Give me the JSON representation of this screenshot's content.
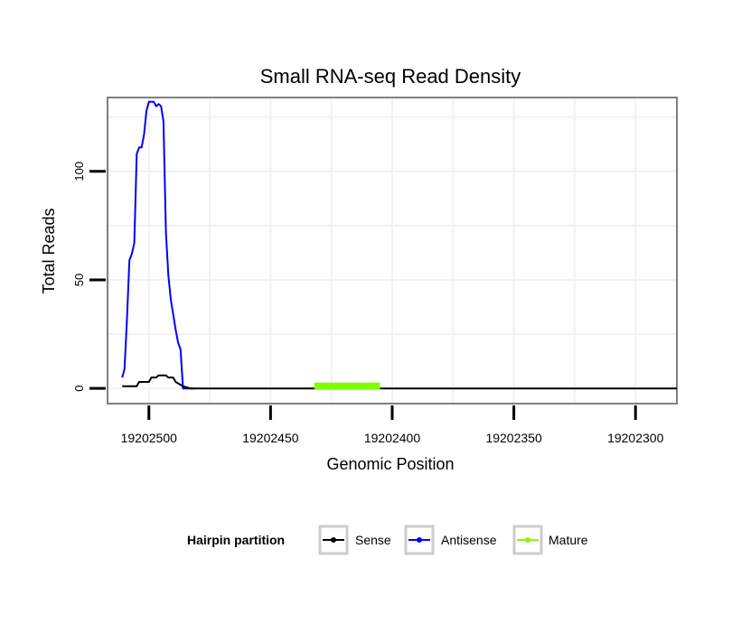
{
  "chart_data": {
    "type": "line",
    "title": "Small RNA-seq Read Density",
    "xlabel": "Genomic Position",
    "ylabel": "Total Reads",
    "x_reversed": true,
    "xlim": [
      19202517,
      19202283
    ],
    "ylim": [
      -7,
      134
    ],
    "x_ticks": [
      19202500,
      19202450,
      19202400,
      19202350,
      19202300
    ],
    "x_tick_labels": [
      "19202500",
      "19202450",
      "19202400",
      "19202350",
      "19202300"
    ],
    "y_ticks": [
      0,
      50,
      100
    ],
    "y_tick_labels": [
      "0",
      "50",
      "100"
    ],
    "grid": true,
    "legend": {
      "title": "Hairpin partition",
      "placement": "bottom",
      "entries": [
        {
          "label": "Sense",
          "color": "#000000"
        },
        {
          "label": "Antisense",
          "color": "#0000ff"
        },
        {
          "label": "Mature",
          "color": "#7fff00"
        }
      ]
    },
    "series": [
      {
        "name": "Antisense",
        "color": "#0000ff",
        "x": [
          19202511,
          19202510,
          19202509,
          19202508,
          19202507,
          19202506,
          19202505,
          19202504,
          19202503,
          19202502,
          19202501,
          19202500,
          19202499,
          19202498,
          19202497,
          19202496,
          19202495,
          19202494,
          19202493,
          19202492,
          19202491,
          19202490,
          19202489,
          19202488,
          19202487,
          19202486,
          19202485,
          19202484,
          19202483,
          19202482,
          19202481
        ],
        "y": [
          5,
          9,
          32,
          59,
          62,
          67,
          108,
          111,
          111,
          117,
          128,
          132,
          132,
          132,
          130,
          131,
          130,
          123,
          72,
          52,
          41,
          34,
          27,
          21,
          18,
          0,
          0,
          0,
          0,
          0,
          0
        ]
      },
      {
        "name": "Sense",
        "color": "#000000",
        "x": [
          19202511,
          19202510,
          19202505,
          19202504,
          19202500,
          19202499,
          19202497,
          19202496,
          19202493,
          19202492,
          19202490,
          19202489,
          19202486,
          19202483,
          19202283
        ],
        "y": [
          1,
          1,
          1,
          3,
          3,
          5,
          5,
          6,
          6,
          5,
          5,
          3,
          1,
          0,
          0
        ]
      },
      {
        "name": "Mature",
        "color": "#7fff00",
        "x": [
          19202432,
          19202405
        ],
        "y": [
          1,
          1
        ]
      }
    ]
  }
}
